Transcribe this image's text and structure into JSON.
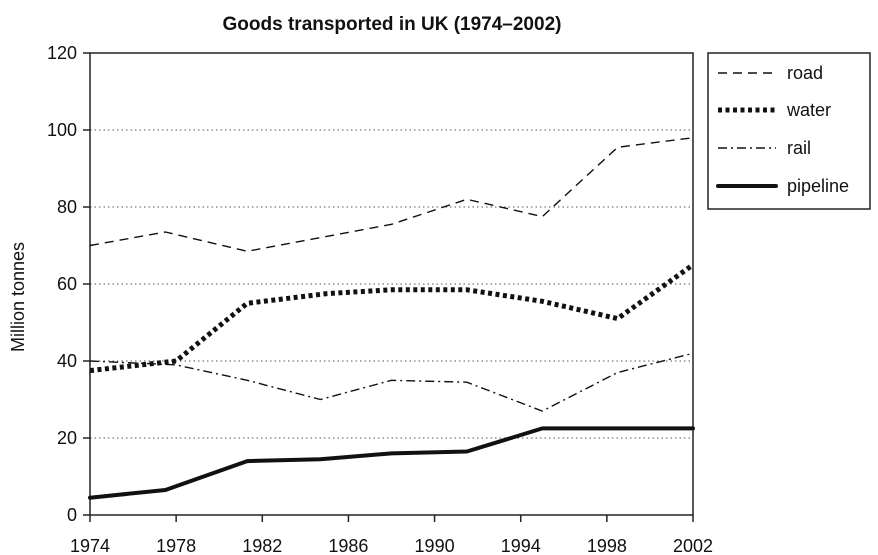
{
  "chart_data": {
    "type": "line",
    "title": "Goods transported in UK (1974–2002)",
    "xlabel": "",
    "ylabel": "Million tonnes",
    "x": [
      1974,
      1978,
      1982,
      1986,
      1990,
      1994,
      1998,
      2002
    ],
    "x_tick_labels": [
      "1974",
      "1978",
      "1982",
      "1986",
      "1990",
      "1994",
      "1998",
      "2002"
    ],
    "xlim": [
      1974,
      2002
    ],
    "y_ticks": [
      0,
      20,
      40,
      60,
      80,
      100,
      120
    ],
    "y_tick_labels": [
      "0",
      "20",
      "40",
      "60",
      "80",
      "100",
      "120"
    ],
    "ylim": [
      0,
      120
    ],
    "grid": "horizontal dotted",
    "legend_position": "right",
    "series": [
      {
        "name": "road",
        "key": "road",
        "style": "dashed",
        "points": [
          [
            1974,
            70
          ],
          [
            1977.5,
            73.5
          ],
          [
            1981.3,
            68.5
          ],
          [
            1988,
            75.5
          ],
          [
            1991.5,
            82
          ],
          [
            1995,
            77.5
          ],
          [
            1998.5,
            95.5
          ],
          [
            2002,
            98
          ]
        ]
      },
      {
        "name": "water",
        "key": "water",
        "style": "dotted-thick",
        "points": [
          [
            1974,
            37.5
          ],
          [
            1978,
            40
          ],
          [
            1981.3,
            55
          ],
          [
            1985,
            57.5
          ],
          [
            1988,
            58.5
          ],
          [
            1991.5,
            58.5
          ],
          [
            1995,
            55.5
          ],
          [
            1998.5,
            51
          ],
          [
            2002,
            65
          ]
        ]
      },
      {
        "name": "rail",
        "key": "rail",
        "style": "dash-dot",
        "points": [
          [
            1974,
            40
          ],
          [
            1978,
            39
          ],
          [
            1981.3,
            35
          ],
          [
            1984.7,
            30
          ],
          [
            1988,
            35
          ],
          [
            1991.5,
            34.5
          ],
          [
            1995,
            27
          ],
          [
            1998.5,
            37
          ],
          [
            2002,
            42
          ]
        ]
      },
      {
        "name": "pipeline",
        "key": "pipeline",
        "style": "solid-thick",
        "points": [
          [
            1974,
            4.5
          ],
          [
            1977.5,
            6.5
          ],
          [
            1981.3,
            14
          ],
          [
            1984.7,
            14.5
          ],
          [
            1988,
            16
          ],
          [
            1991.5,
            16.5
          ],
          [
            1995,
            22.5
          ],
          [
            1998.5,
            22.5
          ],
          [
            2002,
            22.5
          ]
        ]
      }
    ]
  }
}
